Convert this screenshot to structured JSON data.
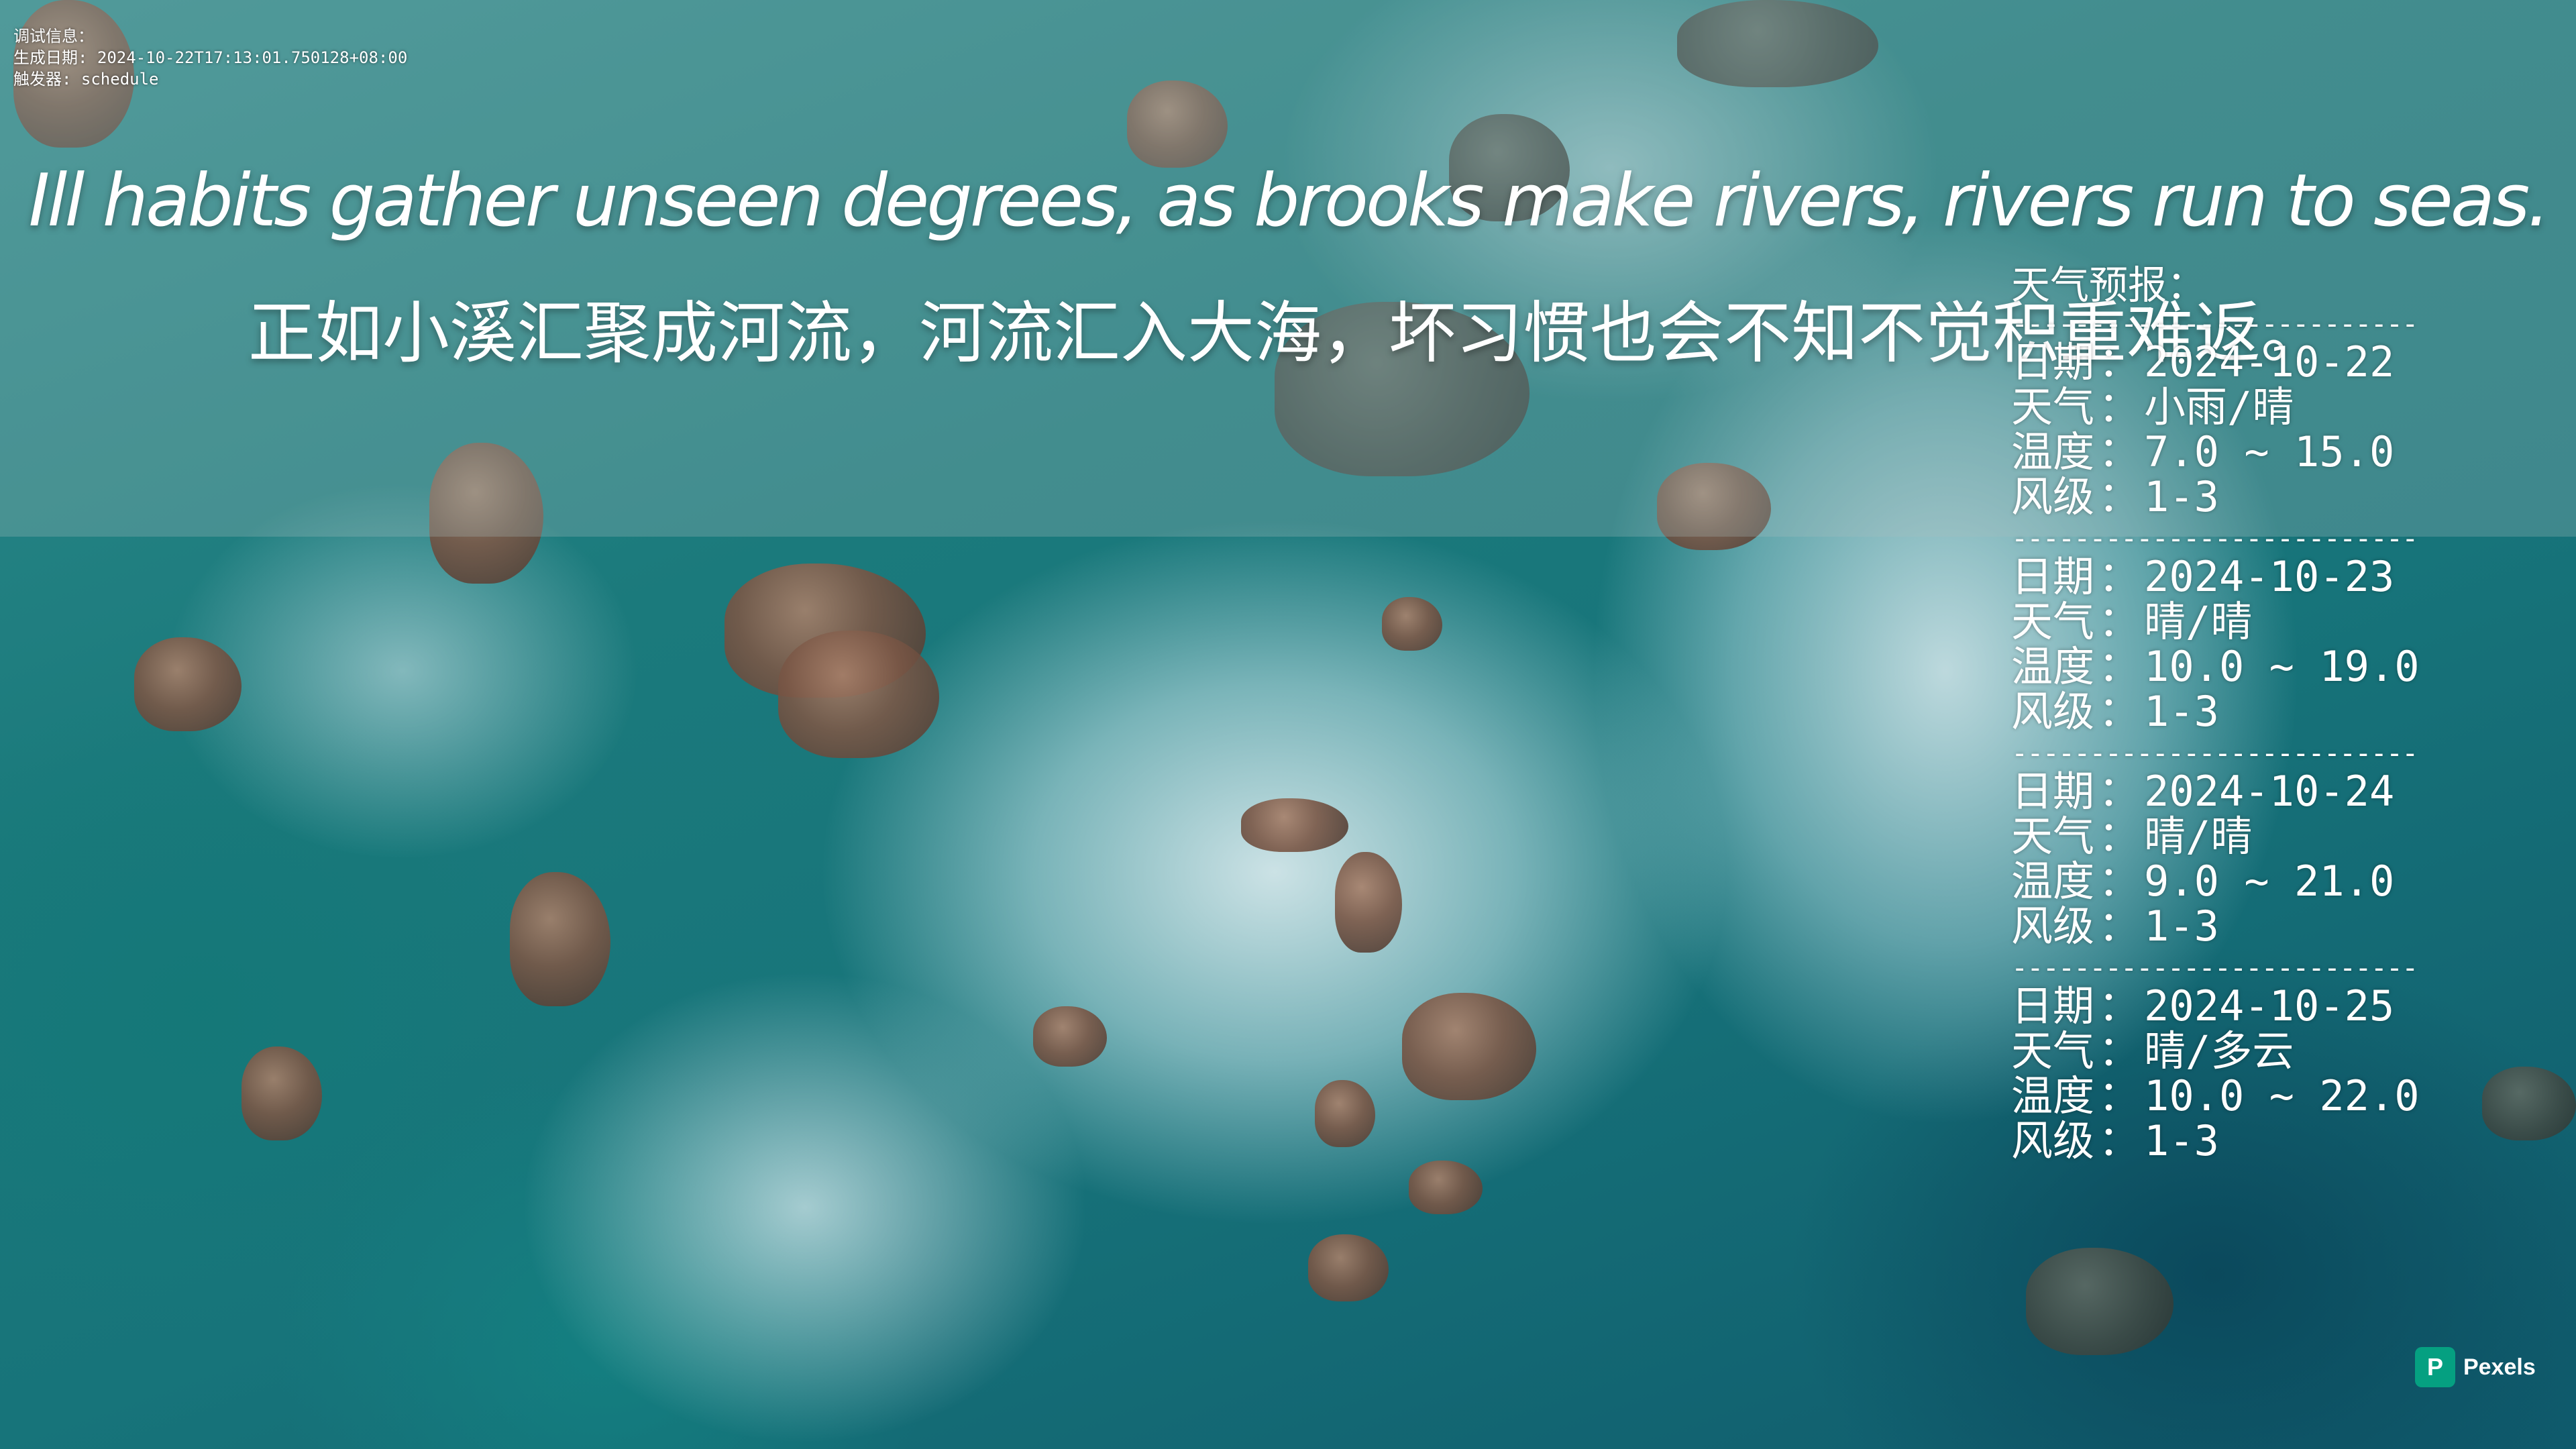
{
  "debug": {
    "line1": "调试信息：",
    "line2": "生成日期: 2024-10-22T17:13:01.750128+08:00",
    "line3": "触发器: schedule"
  },
  "quote": {
    "english": "Ill habits gather unseen degrees, as brooks make rivers, rivers run to seas.",
    "chinese": "正如小溪汇聚成河流，河流汇入大海，坏习惯也会不知不觉积重难返。"
  },
  "weather": {
    "title": "天气预报：",
    "divider": "--------------------------",
    "labels": {
      "date": "日期",
      "weather": "天气",
      "temperature": "温度",
      "wind": "风级"
    },
    "separator": "：",
    "days": [
      {
        "date": "2024-10-22",
        "weather": "小雨/晴",
        "temperature": "7.0 ~ 15.0",
        "wind": "1-3"
      },
      {
        "date": "2024-10-23",
        "weather": "晴/晴",
        "temperature": "10.0 ~ 19.0",
        "wind": "1-3"
      },
      {
        "date": "2024-10-24",
        "weather": "晴/晴",
        "temperature": "9.0 ~ 21.0",
        "wind": "1-3"
      },
      {
        "date": "2024-10-25",
        "weather": "晴/多云",
        "temperature": "10.0 ~ 22.0",
        "wind": "1-3"
      }
    ]
  },
  "watermark": {
    "brand": "Pexels",
    "logo_glyph": "P",
    "logo_color": "#05a081"
  }
}
